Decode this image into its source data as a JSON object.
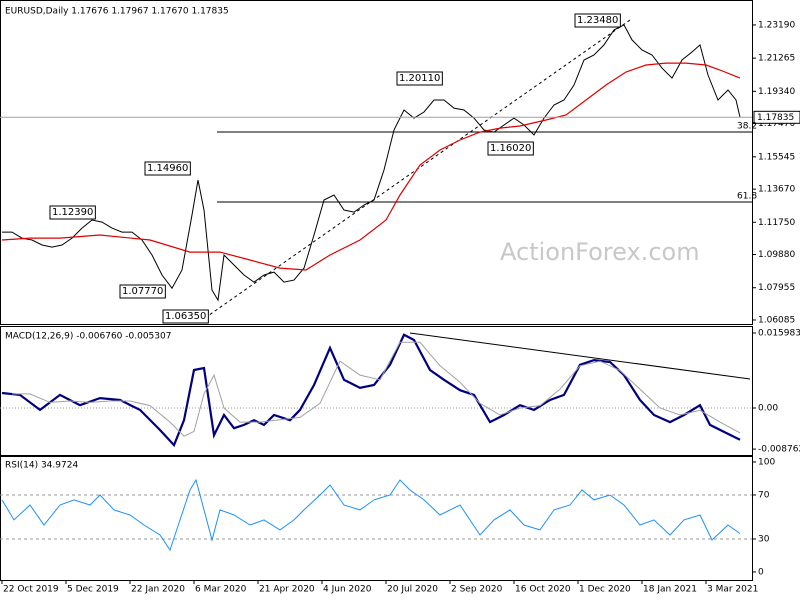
{
  "chart_data": [
    {
      "type": "line",
      "title": "EURUSD,Daily  1.17676 1.17967 1.17670 1.17835",
      "watermark": "ActionForex.com",
      "xlim": [
        0,
        376
      ],
      "ylim": [
        1.0591,
        1.2452
      ],
      "yticks": [
        {
          "value": 1.2319,
          "label": "1.23190"
        },
        1.21265,
        {
          "value": 1.1934,
          "label": "1.19340"
        },
        {
          "value": 1.1747,
          "label": "1.17470"
        },
        1.15545,
        {
          "value": 1.1367,
          "label": "1.13670"
        },
        {
          "value": 1.1175,
          "label": "1.11750"
        },
        {
          "value": 1.0988,
          "label": "1.09880"
        },
        1.07955,
        1.06085
      ],
      "last_price": 1.17835,
      "annotations": [
        "1.23480",
        "1.20110",
        "1.16020",
        "1.14960",
        "1.12390",
        "1.07770",
        "1.06350",
        "38.2",
        "61.8"
      ],
      "series": [
        {
          "color": "#000000",
          "x": [
            1,
            6,
            11,
            16,
            21,
            26,
            31,
            36,
            41,
            46,
            51,
            56,
            61,
            66,
            71,
            76,
            81,
            86,
            91,
            96,
            99,
            102,
            106,
            109,
            112,
            117,
            122,
            127,
            132,
            137,
            142,
            147,
            152,
            157,
            162,
            167,
            172,
            177,
            182,
            187,
            192,
            197,
            202,
            207,
            212,
            217,
            222,
            227,
            232,
            237,
            242,
            247,
            252,
            257,
            262,
            267,
            272,
            277,
            282,
            287,
            292,
            297,
            302,
            307,
            312,
            316,
            321,
            326,
            331,
            336,
            341,
            346,
            350,
            354,
            359,
            364,
            368,
            370
          ],
          "values": [
            1.1118,
            1.1118,
            1.1083,
            1.1072,
            1.1043,
            1.1031,
            1.1043,
            1.1083,
            1.1141,
            1.1188,
            1.1176,
            1.1141,
            1.1118,
            1.1118,
            1.1072,
            1.0985,
            1.0869,
            1.0793,
            1.0898,
            1.1217,
            1.142,
            1.1246,
            1.0782,
            1.0724,
            1.0985,
            1.0927,
            1.0869,
            1.0828,
            1.0869,
            1.0886,
            1.0828,
            1.084,
            1.0909,
            1.1101,
            1.1304,
            1.1333,
            1.1246,
            1.1234,
            1.1275,
            1.1304,
            1.1478,
            1.171,
            1.1826,
            1.1779,
            1.1814,
            1.1884,
            1.1884,
            1.1837,
            1.1826,
            1.1779,
            1.171,
            1.1698,
            1.1739,
            1.1779,
            1.1739,
            1.1681,
            1.1779,
            1.1855,
            1.1884,
            1.1971,
            1.2116,
            1.2145,
            1.2203,
            1.229,
            1.2319,
            1.2232,
            1.2174,
            1.2145,
            1.2069,
            1.2011,
            1.2116,
            1.2162,
            1.2203,
            1.2029,
            1.1884,
            1.1942,
            1.1884,
            1.17835
          ]
        },
        {
          "color": "#e00000",
          "x": [
            1,
            15,
            30,
            50,
            75,
            95,
            110,
            125,
            140,
            153,
            165,
            180,
            193,
            200,
            210,
            220,
            230,
            240,
            250,
            260,
            273,
            283,
            293,
            303,
            313,
            323,
            333,
            343,
            353,
            360,
            370
          ],
          "values": [
            1.1072,
            1.1083,
            1.1083,
            1.1101,
            1.1072,
            1.1002,
            1.1002,
            1.0956,
            1.0909,
            1.0898,
            1.0985,
            1.1072,
            1.1188,
            1.1333,
            1.1507,
            1.1594,
            1.1652,
            1.1698,
            1.1721,
            1.1733,
            1.1768,
            1.1797,
            1.1884,
            1.1971,
            1.2046,
            1.2087,
            1.2098,
            1.2098,
            1.2087,
            1.2058,
            1.2011
          ]
        }
      ]
    },
    {
      "type": "line",
      "title": "MACD(12,26,9) -0.006760 -0.005307",
      "xlim": [
        0,
        376
      ],
      "ylim": [
        -0.01002,
        0.01705
      ],
      "yticks": [
        0.015983,
        {
          "value": 0,
          "label": "0.00"
        },
        -0.008762
      ],
      "series": [
        {
          "color": "#000080",
          "x": [
            1,
            10,
            20,
            30,
            40,
            50,
            60,
            70,
            80,
            87,
            92,
            97,
            102,
            107,
            112,
            117,
            122,
            127,
            132,
            137,
            145,
            150,
            157,
            165,
            172,
            180,
            187,
            195,
            202,
            207,
            215,
            222,
            230,
            237,
            245,
            252,
            260,
            267,
            275,
            282,
            290,
            297,
            305,
            312,
            320,
            327,
            335,
            342,
            350,
            355,
            362,
            370
          ],
          "values": [
            0.0032,
            0.0028,
            -0.0004,
            0.0028,
            0.0006,
            0.0021,
            0.0017,
            -0.0004,
            -0.0047,
            -0.0079,
            -0.0026,
            0.0081,
            0.0085,
            -0.0058,
            -0.0015,
            -0.0043,
            -0.0036,
            -0.0026,
            -0.0036,
            -0.0015,
            -0.0026,
            -0.0004,
            0.0049,
            0.0128,
            0.006,
            0.0043,
            0.0049,
            0.0092,
            0.0156,
            0.0145,
            0.0081,
            0.006,
            0.0038,
            0.0028,
            -0.003,
            -0.0015,
            0.0006,
            -0.0004,
            0.0017,
            0.0028,
            0.0092,
            0.0102,
            0.0098,
            0.007,
            0.0017,
            -0.0015,
            -0.003,
            -0.0015,
            0.0006,
            -0.0036,
            -0.0051,
            -0.00676
          ]
        },
        {
          "color": "#a0a0a0",
          "x": [
            6,
            15,
            25,
            35,
            45,
            55,
            65,
            75,
            85,
            92,
            97,
            102,
            107,
            112,
            120,
            130,
            140,
            150,
            160,
            170,
            180,
            190,
            200,
            210,
            220,
            230,
            240,
            250,
            260,
            270,
            280,
            290,
            300,
            310,
            320,
            330,
            340,
            350,
            360,
            370
          ],
          "values": [
            0.003,
            0.003,
            0.0012,
            0.0015,
            0.0012,
            0.0015,
            0.0015,
            0.0005,
            -0.003,
            -0.006,
            -0.005,
            0.003,
            0.007,
            0,
            -0.003,
            -0.003,
            -0.0025,
            -0.002,
            0.001,
            0.01,
            0.007,
            0.006,
            0.014,
            0.014,
            0.009,
            0.0055,
            0.001,
            -0.0015,
            0,
            0.0005,
            0.004,
            0.009,
            0.01,
            0.008,
            0.004,
            0,
            -0.0015,
            -0.0005,
            -0.003,
            -0.005307
          ]
        }
      ]
    },
    {
      "type": "line",
      "title": "RSI(14) 34.9724",
      "xlim": [
        0,
        376
      ],
      "ylim": [
        -7.3,
        103.6
      ],
      "yticks": [
        100,
        70,
        30,
        0
      ],
      "xticks": [
        {
          "value": 1,
          "label": "22 Oct 2019"
        },
        {
          "value": 33,
          "label": "5 Dec 2019"
        },
        {
          "value": 65,
          "label": "22 Jan 2020"
        },
        {
          "value": 97,
          "label": "6 Mar 2020"
        },
        {
          "value": 129,
          "label": "21 Apr 2020"
        },
        {
          "value": 161,
          "label": "4 Jun 2020"
        },
        {
          "value": 193,
          "label": "20 Jul 2020"
        },
        {
          "value": 225,
          "label": "2 Sep 2020"
        },
        {
          "value": 257,
          "label": "16 Oct 2020"
        },
        {
          "value": 289,
          "label": "1 Dec 2020"
        },
        {
          "value": 321,
          "label": "18 Jan 2021"
        },
        {
          "value": 353,
          "label": "3 Mar 2021"
        }
      ],
      "series": [
        {
          "color": "#1e90ff",
          "x": [
            1,
            7,
            15,
            22,
            30,
            37,
            45,
            50,
            57,
            65,
            72,
            80,
            85,
            90,
            95,
            98,
            102,
            106,
            110,
            117,
            125,
            132,
            140,
            147,
            152,
            160,
            165,
            172,
            180,
            187,
            195,
            200,
            205,
            212,
            220,
            230,
            240,
            247,
            255,
            262,
            270,
            277,
            285,
            291,
            297,
            305,
            312,
            320,
            327,
            335,
            342,
            350,
            356,
            364,
            370
          ],
          "values": [
            65.5,
            47.3,
            60.9,
            42.7,
            60.9,
            65.5,
            60.9,
            70.0,
            56.4,
            51.8,
            42.7,
            33.6,
            20.0,
            47.3,
            74.5,
            83.6,
            56.4,
            29.1,
            56.4,
            51.8,
            42.7,
            47.3,
            38.2,
            47.3,
            56.4,
            70.0,
            79.1,
            60.9,
            56.4,
            65.5,
            70.0,
            83.6,
            74.5,
            65.5,
            51.8,
            60.9,
            33.6,
            47.3,
            56.4,
            42.7,
            38.2,
            56.4,
            60.9,
            74.5,
            65.5,
            70.0,
            60.9,
            42.7,
            47.3,
            33.6,
            47.3,
            51.8,
            29.1,
            42.7,
            34.9724
          ]
        }
      ]
    }
  ]
}
